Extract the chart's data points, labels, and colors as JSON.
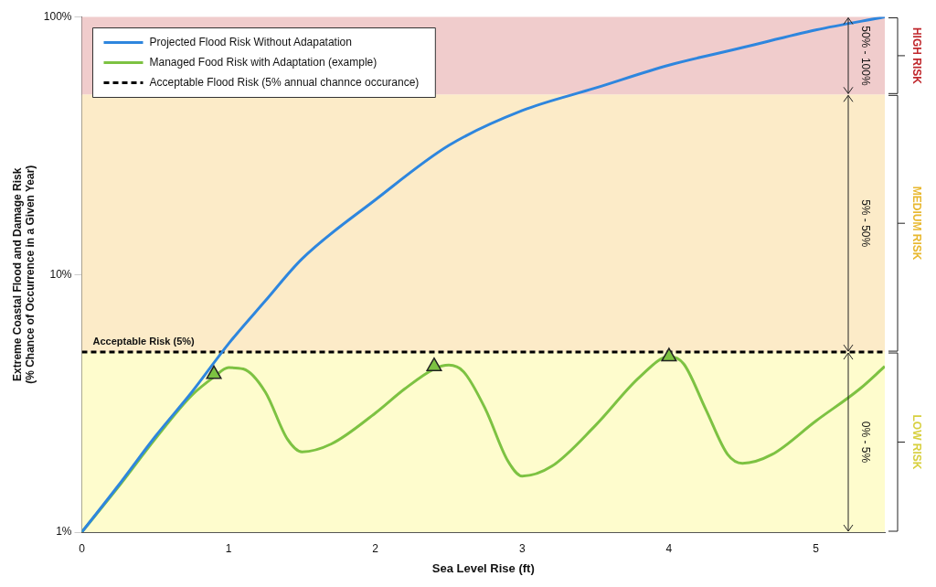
{
  "chart_data": {
    "type": "line",
    "xlabel": "Sea Level Rise (ft)",
    "ylabel": "Extreme Coastal Flood and Damage Risk",
    "subtitle": "(% Chance of Occurrence in a Given Year)",
    "log": "y",
    "xlim": [
      0,
      5.47
    ],
    "ylim": [
      1,
      100
    ],
    "xticks": [
      0,
      1,
      2,
      3,
      4,
      5
    ],
    "yticks": [
      {
        "value": 1,
        "label": "1%"
      },
      {
        "value": 10,
        "label": "10%"
      },
      {
        "value": 100,
        "label": "100%"
      }
    ],
    "grid": false,
    "legend": "top left",
    "line_style": "solid",
    "marker": "none",
    "series": [
      {
        "name": "Projected Flood Risk Without Adapatation",
        "color": "#2e86de",
        "x": [
          0,
          0.25,
          0.5,
          0.75,
          1,
          1.25,
          1.5,
          2,
          2.5,
          3,
          3.5,
          4,
          4.5,
          5,
          5.47
        ],
        "values": [
          1,
          1.52,
          2.35,
          3.5,
          5.39,
          7.9,
          11.5,
          19.5,
          31.7,
          43.3,
          53,
          65,
          76,
          89,
          100
        ]
      },
      {
        "name": "Managed Food Risk with Adaptation (example)",
        "color": "#7dc242",
        "x": [
          0,
          0.25,
          0.5,
          0.75,
          0.9,
          1,
          1.1,
          1.25,
          1.4,
          1.5,
          1.7,
          2,
          2.2,
          2.4,
          2.5,
          2.6,
          2.75,
          2.9,
          3,
          3.2,
          3.5,
          3.8,
          4,
          4.1,
          4.25,
          4.4,
          4.5,
          4.7,
          5,
          5.3,
          5.47
        ],
        "values": [
          1,
          1.5,
          2.3,
          3.4,
          4,
          4.35,
          4.3,
          3.5,
          2.3,
          2.05,
          2.2,
          2.9,
          3.6,
          4.3,
          4.45,
          4.2,
          3,
          1.9,
          1.65,
          1.8,
          2.6,
          4,
          4.8,
          4.5,
          3,
          2,
          1.85,
          2,
          2.7,
          3.6,
          4.4
        ]
      },
      {
        "name": "Acceptable Flood Risk (5% annual channce occurance)",
        "color": "#000000",
        "line_style": "dashed",
        "x": [
          0,
          5.47
        ],
        "values": [
          5,
          5
        ]
      },
      {
        "type": "scatter",
        "marker": "triangle",
        "color": "#7dc242",
        "x": [
          0.9,
          2.4,
          4
        ],
        "values": [
          4.1,
          4.4,
          4.8
        ]
      }
    ],
    "bands": [
      {
        "axis": "y",
        "from": 1,
        "to": 5,
        "label": "LOW RISK",
        "color": "#fefccd"
      },
      {
        "axis": "y",
        "from": 5,
        "to": 50,
        "label": "MEDIUM RISK",
        "color": "#fcebc8"
      },
      {
        "axis": "y",
        "from": 50,
        "to": 100,
        "label": "HIGH RISK",
        "color": "#f0cccc"
      }
    ],
    "annotations": [
      "Acceptable Risk (5%)",
      "0% - 5%",
      "5% - 50%",
      "50% - 100%"
    ]
  }
}
